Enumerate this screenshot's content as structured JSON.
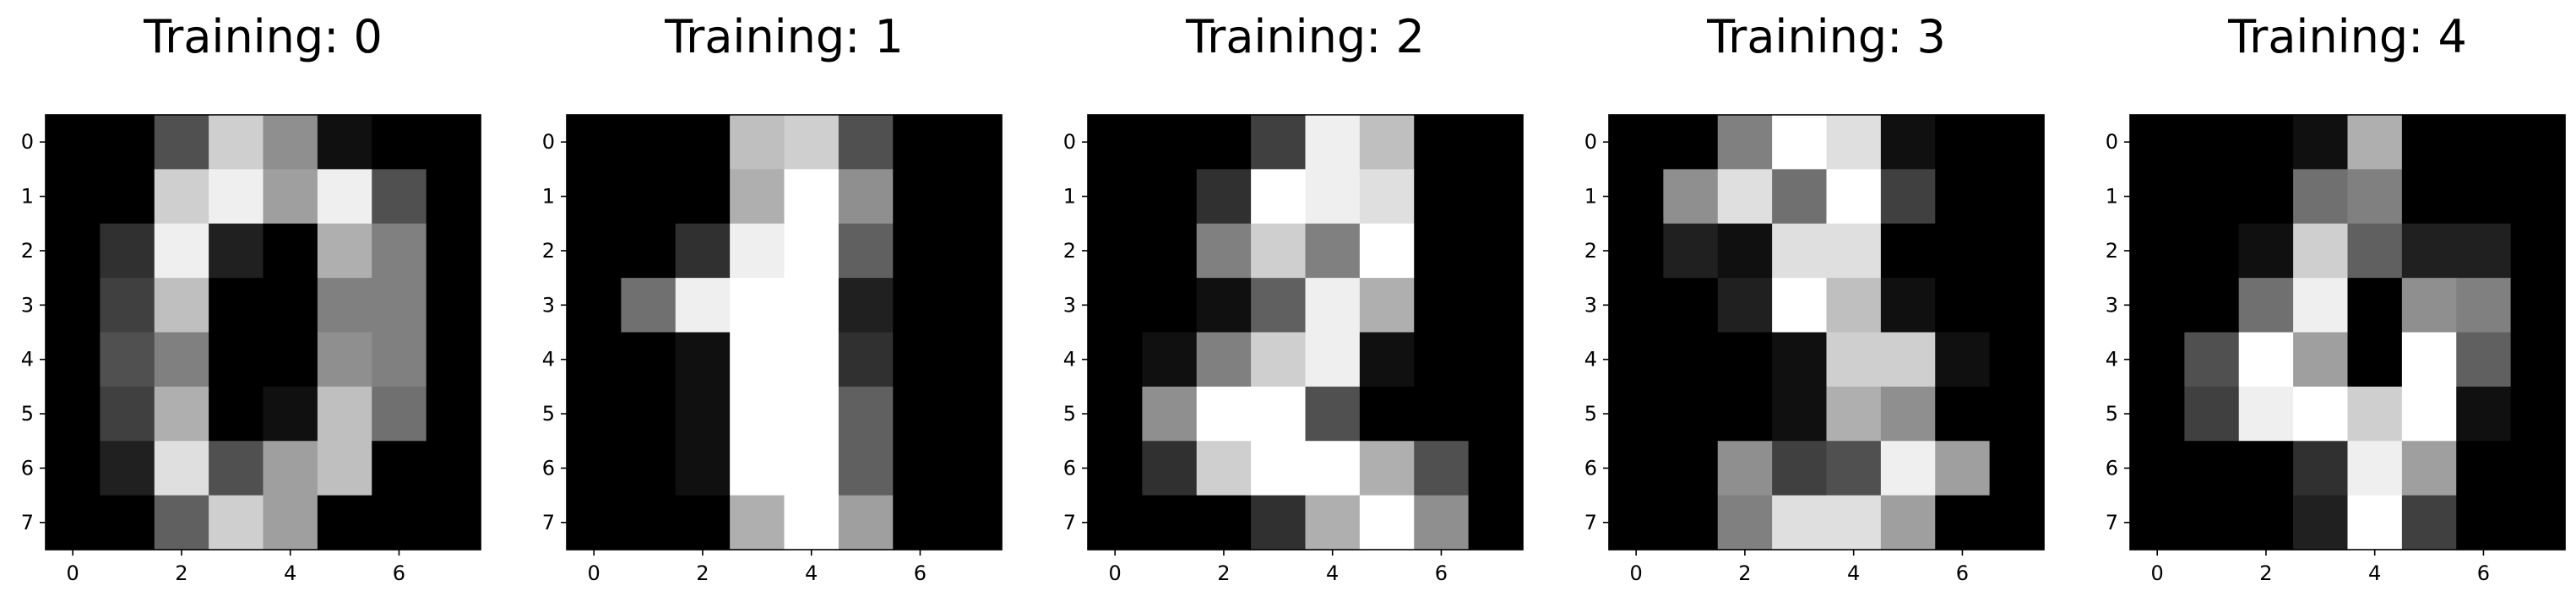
{
  "chart_data": [
    {
      "type": "heatmap",
      "title": "Training: 0",
      "colormap": "gray",
      "value_range": [
        0,
        16
      ],
      "x_ticks": [
        "0",
        "2",
        "4",
        "6"
      ],
      "y_ticks": [
        "0",
        "1",
        "2",
        "3",
        "4",
        "5",
        "6",
        "7"
      ],
      "values": [
        [
          0,
          0,
          5,
          13,
          9,
          1,
          0,
          0
        ],
        [
          0,
          0,
          13,
          15,
          10,
          15,
          5,
          0
        ],
        [
          0,
          3,
          15,
          2,
          0,
          11,
          8,
          0
        ],
        [
          0,
          4,
          12,
          0,
          0,
          8,
          8,
          0
        ],
        [
          0,
          5,
          8,
          0,
          0,
          9,
          8,
          0
        ],
        [
          0,
          4,
          11,
          0,
          1,
          12,
          7,
          0
        ],
        [
          0,
          2,
          14,
          5,
          10,
          12,
          0,
          0
        ],
        [
          0,
          0,
          6,
          13,
          10,
          0,
          0,
          0
        ]
      ]
    },
    {
      "type": "heatmap",
      "title": "Training: 1",
      "colormap": "gray",
      "value_range": [
        0,
        16
      ],
      "x_ticks": [
        "0",
        "2",
        "4",
        "6"
      ],
      "y_ticks": [
        "0",
        "1",
        "2",
        "3",
        "4",
        "5",
        "6",
        "7"
      ],
      "values": [
        [
          0,
          0,
          0,
          12,
          13,
          5,
          0,
          0
        ],
        [
          0,
          0,
          0,
          11,
          16,
          9,
          0,
          0
        ],
        [
          0,
          0,
          3,
          15,
          16,
          6,
          0,
          0
        ],
        [
          0,
          7,
          15,
          16,
          16,
          2,
          0,
          0
        ],
        [
          0,
          0,
          1,
          16,
          16,
          3,
          0,
          0
        ],
        [
          0,
          0,
          1,
          16,
          16,
          6,
          0,
          0
        ],
        [
          0,
          0,
          1,
          16,
          16,
          6,
          0,
          0
        ],
        [
          0,
          0,
          0,
          11,
          16,
          10,
          0,
          0
        ]
      ]
    },
    {
      "type": "heatmap",
      "title": "Training: 2",
      "colormap": "gray",
      "value_range": [
        0,
        16
      ],
      "x_ticks": [
        "0",
        "2",
        "4",
        "6"
      ],
      "y_ticks": [
        "0",
        "1",
        "2",
        "3",
        "4",
        "5",
        "6",
        "7"
      ],
      "values": [
        [
          0,
          0,
          0,
          4,
          15,
          12,
          0,
          0
        ],
        [
          0,
          0,
          3,
          16,
          15,
          14,
          0,
          0
        ],
        [
          0,
          0,
          8,
          13,
          8,
          16,
          0,
          0
        ],
        [
          0,
          0,
          1,
          6,
          15,
          11,
          0,
          0
        ],
        [
          0,
          1,
          8,
          13,
          15,
          1,
          0,
          0
        ],
        [
          0,
          9,
          16,
          16,
          5,
          0,
          0,
          0
        ],
        [
          0,
          3,
          13,
          16,
          16,
          11,
          5,
          0
        ],
        [
          0,
          0,
          0,
          3,
          11,
          16,
          9,
          0
        ]
      ]
    },
    {
      "type": "heatmap",
      "title": "Training: 3",
      "colormap": "gray",
      "value_range": [
        0,
        16
      ],
      "x_ticks": [
        "0",
        "2",
        "4",
        "6"
      ],
      "y_ticks": [
        "0",
        "1",
        "2",
        "3",
        "4",
        "5",
        "6",
        "7"
      ],
      "values": [
        [
          0,
          0,
          8,
          16,
          14,
          1,
          0,
          0
        ],
        [
          0,
          9,
          14,
          7,
          16,
          4,
          0,
          0
        ],
        [
          0,
          2,
          1,
          14,
          14,
          0,
          0,
          0
        ],
        [
          0,
          0,
          2,
          16,
          12,
          1,
          0,
          0
        ],
        [
          0,
          0,
          0,
          1,
          13,
          13,
          1,
          0
        ],
        [
          0,
          0,
          0,
          1,
          11,
          9,
          0,
          0
        ],
        [
          0,
          0,
          9,
          4,
          5,
          15,
          10,
          0
        ],
        [
          0,
          0,
          8,
          14,
          14,
          10,
          0,
          0
        ]
      ]
    },
    {
      "type": "heatmap",
      "title": "Training: 4",
      "colormap": "gray",
      "value_range": [
        0,
        16
      ],
      "x_ticks": [
        "0",
        "2",
        "4",
        "6"
      ],
      "y_ticks": [
        "0",
        "1",
        "2",
        "3",
        "4",
        "5",
        "6",
        "7"
      ],
      "values": [
        [
          0,
          0,
          0,
          1,
          11,
          0,
          0,
          0
        ],
        [
          0,
          0,
          0,
          7,
          8,
          0,
          0,
          0
        ],
        [
          0,
          0,
          1,
          13,
          6,
          2,
          2,
          0
        ],
        [
          0,
          0,
          7,
          15,
          0,
          9,
          8,
          0
        ],
        [
          0,
          5,
          16,
          10,
          0,
          16,
          6,
          0
        ],
        [
          0,
          4,
          15,
          16,
          13,
          16,
          1,
          0
        ],
        [
          0,
          0,
          0,
          3,
          15,
          10,
          0,
          0
        ],
        [
          0,
          0,
          0,
          2,
          16,
          4,
          0,
          0
        ]
      ]
    }
  ]
}
